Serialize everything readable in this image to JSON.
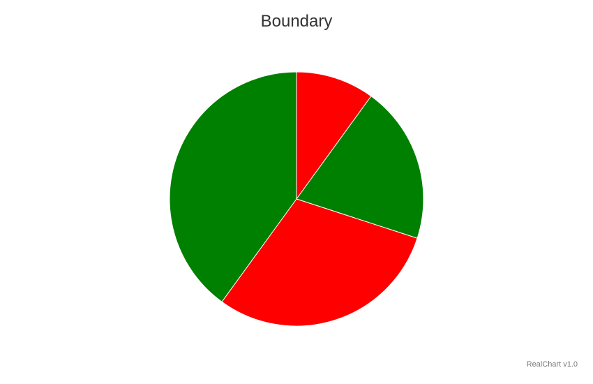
{
  "chart_data": {
    "type": "pie",
    "title": "Boundary",
    "values": [
      10,
      20,
      30,
      40
    ],
    "colors": [
      "#ff0000",
      "#008000",
      "#ff0000",
      "#008000"
    ],
    "start_angle_deg": 0,
    "direction": "clockwise"
  },
  "credit": "RealChart v1.0"
}
